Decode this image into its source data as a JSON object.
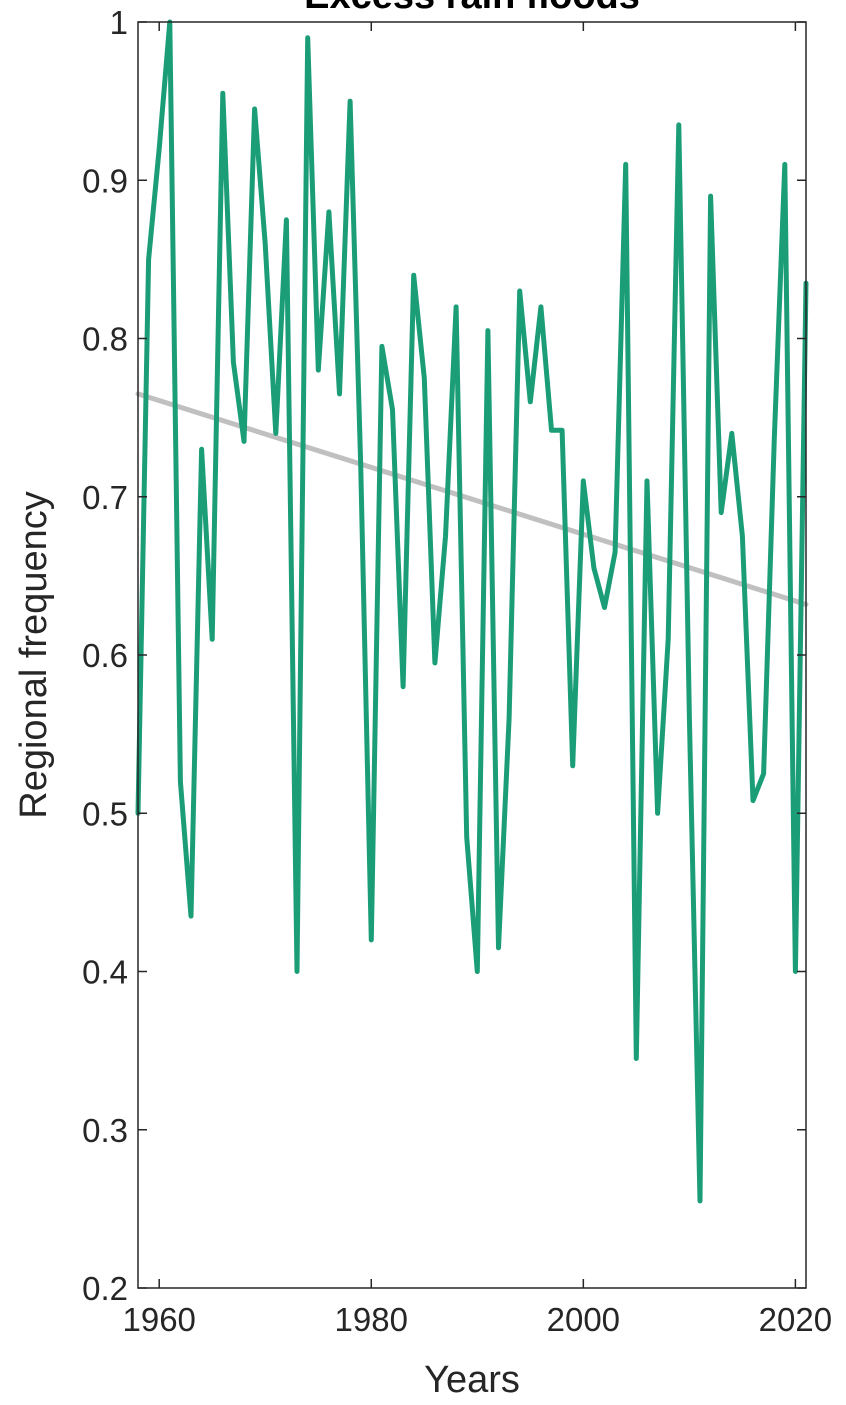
{
  "chart_data": {
    "type": "line",
    "title": "Excess rain floods",
    "xlabel": "Years",
    "ylabel": "Regional frequency",
    "xlim": [
      1958,
      2021
    ],
    "ylim": [
      0.2,
      1.0
    ],
    "xticks": [
      1960,
      1980,
      2000,
      2020
    ],
    "xtick_labels": [
      "1960",
      "1980",
      "2000",
      "2020"
    ],
    "yticks": [
      0.2,
      0.3,
      0.4,
      0.5,
      0.6,
      0.7,
      0.8,
      0.9,
      1.0
    ],
    "ytick_labels": [
      "0.2",
      "0.3",
      "0.4",
      "0.5",
      "0.6",
      "0.7",
      "0.8",
      "0.9",
      "1"
    ],
    "grid": false,
    "x": [
      1958,
      1959,
      1960,
      1961,
      1962,
      1963,
      1964,
      1965,
      1966,
      1967,
      1968,
      1969,
      1970,
      1971,
      1972,
      1973,
      1974,
      1975,
      1976,
      1977,
      1978,
      1979,
      1980,
      1981,
      1982,
      1983,
      1984,
      1985,
      1986,
      1987,
      1988,
      1989,
      1990,
      1991,
      1992,
      1993,
      1994,
      1995,
      1996,
      1997,
      1998,
      1999,
      2000,
      2001,
      2002,
      2003,
      2004,
      2005,
      2006,
      2007,
      2008,
      2009,
      2010,
      2011,
      2012,
      2013,
      2014,
      2015,
      2016,
      2017,
      2018,
      2019,
      2020,
      2021
    ],
    "series": [
      {
        "color": "#1b9e77",
        "values": [
          0.5,
          0.85,
          0.92,
          1.0,
          0.52,
          0.435,
          0.73,
          0.61,
          0.955,
          0.785,
          0.735,
          0.945,
          0.86,
          0.74,
          0.875,
          0.4,
          0.99,
          0.78,
          0.88,
          0.765,
          0.95,
          0.72,
          0.42,
          0.795,
          0.755,
          0.58,
          0.84,
          0.775,
          0.595,
          0.675,
          0.82,
          0.485,
          0.4,
          0.805,
          0.415,
          0.56,
          0.83,
          0.76,
          0.82,
          0.742,
          0.742,
          0.53,
          0.71,
          0.655,
          0.63,
          0.665,
          0.91,
          0.345,
          0.71,
          0.5,
          0.61,
          0.935,
          0.56,
          0.255,
          0.89,
          0.69,
          0.74,
          0.675,
          0.508,
          0.525,
          0.735,
          0.91,
          0.4,
          0.835
        ]
      },
      {
        "color": "#c0c0c0",
        "trend": true,
        "values": [
          0.765,
          0.632
        ],
        "x": [
          1958,
          2021
        ]
      }
    ]
  }
}
